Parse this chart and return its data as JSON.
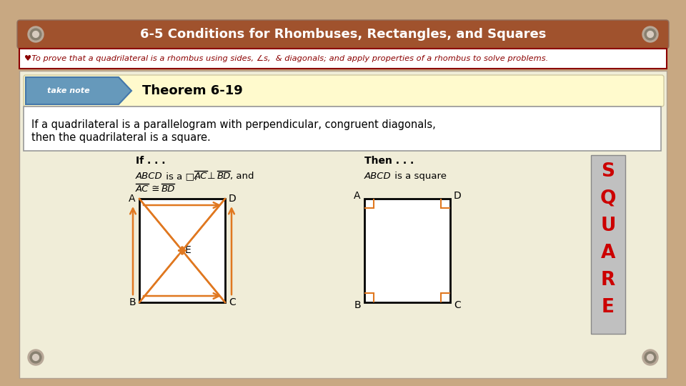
{
  "title": "6-5 Conditions for Rhombuses, Rectangles, and Squares",
  "title_color": "#FFFFFF",
  "title_bg": "#A0522D",
  "bg_color": "#C8A882",
  "objective_text": "♥To prove that a quadrilateral is a rhombus using sides, ∠s,  & diagonals; and apply properties of a rhombus to solve problems.",
  "objective_bg": "#FFFFFF",
  "objective_border": "#8B0000",
  "theorem_title": "Theorem 6-19",
  "theorem_statement": "If a quadrilateral is a parallelogram with perpendicular, congruent diagonals,\nthen the quadrilateral is a square.",
  "if_text": "If . . .",
  "then_text": "Then . . .",
  "square_letters": [
    "S",
    "Q",
    "U",
    "A",
    "R",
    "E"
  ],
  "square_letter_color": "#CC0000",
  "square_bg": "#C0C0C0",
  "note_cream": "#FFFACD",
  "content_bg": "#F0EDD8",
  "inner_bg": "#FFFFFF",
  "orange": "#E07820",
  "black": "#000000",
  "screw_outer": "#B8A898",
  "screw_inner": "#888070",
  "screw_highlight": "#D8CCC0"
}
